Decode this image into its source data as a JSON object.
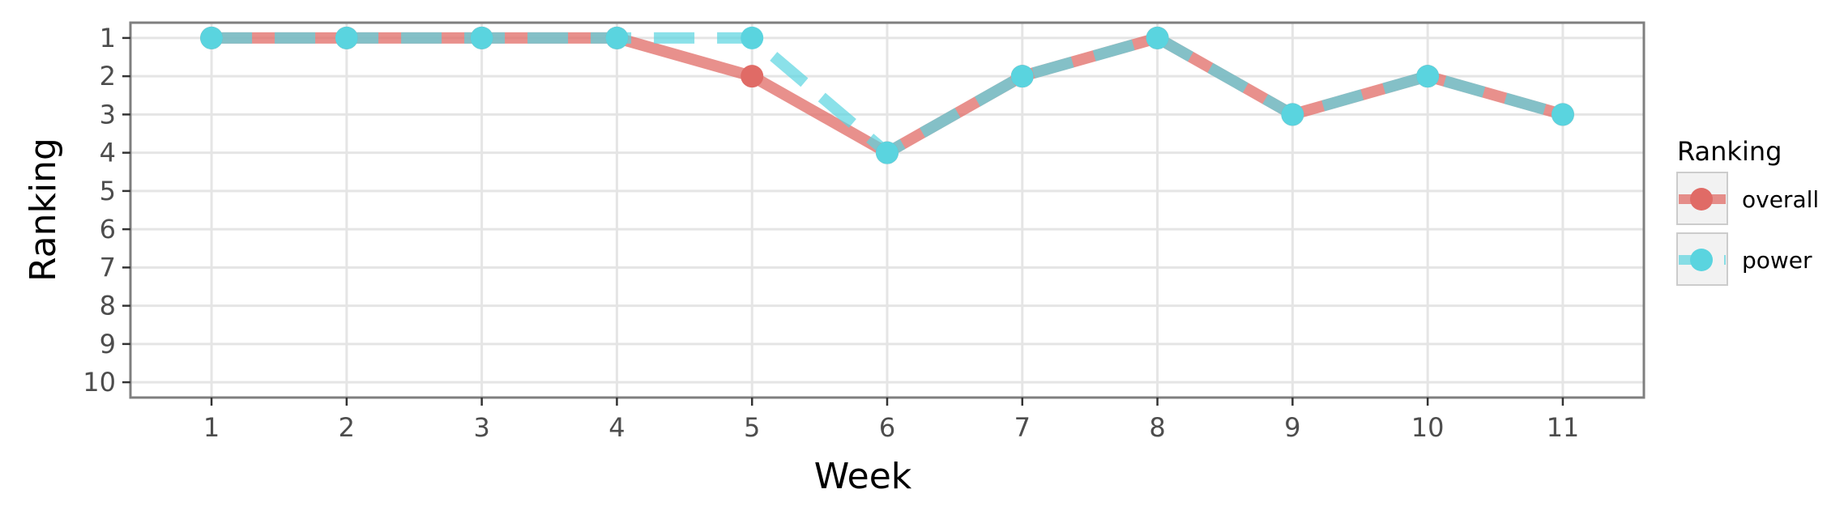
{
  "chart_data": {
    "type": "line",
    "xlabel": "Week",
    "ylabel": "Ranking",
    "x": [
      1,
      2,
      3,
      4,
      5,
      6,
      7,
      8,
      9,
      10,
      11
    ],
    "x_tick_labels": [
      "1",
      "2",
      "3",
      "4",
      "5",
      "6",
      "7",
      "8",
      "9",
      "10",
      "11"
    ],
    "y_tick_labels": [
      "1",
      "2",
      "3",
      "4",
      "5",
      "6",
      "7",
      "8",
      "9",
      "10"
    ],
    "y_ticks": [
      1,
      2,
      3,
      4,
      5,
      6,
      7,
      8,
      9,
      10
    ],
    "xlim": [
      0.4,
      11.6
    ],
    "ylim": [
      10.4,
      0.6
    ],
    "y_reversed": true,
    "grid": true,
    "legend": {
      "title": "Ranking",
      "position": "right",
      "entries": [
        "overall",
        "power"
      ]
    },
    "series": [
      {
        "name": "overall",
        "values": [
          1,
          1,
          1,
          1,
          2,
          4,
          2,
          1,
          3,
          2,
          3
        ],
        "color": "#e06b66",
        "line_style": "solid"
      },
      {
        "name": "power",
        "values": [
          1,
          1,
          1,
          1,
          1,
          4,
          2,
          1,
          3,
          2,
          3
        ],
        "color": "#5ad4df",
        "line_style": "dashed"
      }
    ]
  }
}
